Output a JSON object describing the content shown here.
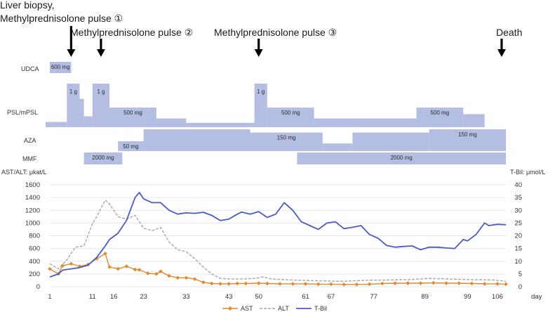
{
  "annotations": {
    "event1_line1": "Liver biopsy,",
    "event1_line2": "Methylprednisolone pulse ①",
    "event2": "Methylprednisolone pulse ②",
    "event3": "Methylprednisolone pulse ③",
    "event4": "Death",
    "event_days": [
      6,
      13,
      50,
      107
    ]
  },
  "timeline_rows": {
    "udca": {
      "label": "UDCA",
      "segments": [
        {
          "start": 1,
          "end": 6,
          "level": 1,
          "text": "600 mg"
        }
      ]
    },
    "psl": {
      "label": "PSL/mPSL",
      "segments": [
        {
          "start": 0,
          "end": 5,
          "level": 0.12,
          "text": ""
        },
        {
          "start": 5,
          "end": 8,
          "level": 1.0,
          "text": "1 g"
        },
        {
          "start": 8,
          "end": 9,
          "level": 0.65,
          "text": ""
        },
        {
          "start": 9,
          "end": 11,
          "level": 0.25,
          "text": ""
        },
        {
          "start": 11,
          "end": 15,
          "level": 1.0,
          "text": "1 g"
        },
        {
          "start": 15,
          "end": 26,
          "level": 0.45,
          "text": "500 mg"
        },
        {
          "start": 26,
          "end": 33,
          "level": 0.2,
          "text": ""
        },
        {
          "start": 33,
          "end": 49,
          "level": 0.1,
          "text": ""
        },
        {
          "start": 49,
          "end": 52,
          "level": 1.0,
          "text": "1 g"
        },
        {
          "start": 52,
          "end": 63,
          "level": 0.45,
          "text": "500 mg"
        },
        {
          "start": 63,
          "end": 87,
          "level": 0.2,
          "text": ""
        },
        {
          "start": 87,
          "end": 98,
          "level": 0.45,
          "text": "500 mg"
        },
        {
          "start": 98,
          "end": 103,
          "level": 0.3,
          "text": ""
        }
      ]
    },
    "aza": {
      "label": "AZA",
      "segments": [
        {
          "start": 17,
          "end": 23,
          "level": 0.45,
          "text": "50 mg"
        },
        {
          "start": 23,
          "end": 48,
          "level": 1.0,
          "text": ""
        },
        {
          "start": 48,
          "end": 65,
          "level": 0.85,
          "text": "150 mg"
        },
        {
          "start": 65,
          "end": 72,
          "level": 0.35,
          "text": ""
        },
        {
          "start": 72,
          "end": 90,
          "level": 0.85,
          "text": ""
        },
        {
          "start": 90,
          "end": 108,
          "level": 1.0,
          "text": "150 mg"
        }
      ]
    },
    "mmf": {
      "label": "MMF",
      "segments": [
        {
          "start": 9,
          "end": 18,
          "level": 1,
          "text": "2000 mg"
        },
        {
          "start": 59,
          "end": 108,
          "level": 1,
          "text": "2000 mg"
        }
      ]
    }
  },
  "chart_data": {
    "type": "line",
    "xlabel": "day",
    "ylabel_left": "AST/ALT: μkat/L",
    "ylabel_right": "T-Bil: μmol/L",
    "ylim_left": [
      0,
      1600
    ],
    "ylim_right": [
      0,
      40
    ],
    "xlim": [
      1,
      108
    ],
    "x_ticks": [
      1,
      11,
      16,
      23,
      33,
      43,
      50,
      61,
      67,
      77,
      89,
      99,
      106
    ],
    "y_ticks_left": [
      0,
      200,
      400,
      600,
      800,
      1000,
      1200,
      1400,
      1600
    ],
    "y_ticks_right": [
      0,
      5,
      10,
      15,
      20,
      25,
      30,
      35,
      40
    ],
    "legend_position": "bottom",
    "series": [
      {
        "name": "AST",
        "axis": "left",
        "color": "#e08a2c",
        "marker": "diamond",
        "points": [
          [
            1,
            280
          ],
          [
            3,
            200
          ],
          [
            4,
            330
          ],
          [
            6,
            360
          ],
          [
            8,
            320
          ],
          [
            10,
            350
          ],
          [
            12,
            440
          ],
          [
            14,
            520
          ],
          [
            15,
            310
          ],
          [
            17,
            280
          ],
          [
            19,
            320
          ],
          [
            21,
            270
          ],
          [
            22,
            265
          ],
          [
            24,
            210
          ],
          [
            26,
            200
          ],
          [
            27,
            240
          ],
          [
            29,
            170
          ],
          [
            31,
            140
          ],
          [
            33,
            140
          ],
          [
            35,
            120
          ],
          [
            37,
            70
          ],
          [
            39,
            50
          ],
          [
            41,
            45
          ],
          [
            43,
            45
          ],
          [
            45,
            50
          ],
          [
            47,
            50
          ],
          [
            50,
            55
          ],
          [
            52,
            50
          ],
          [
            55,
            45
          ],
          [
            58,
            45
          ],
          [
            61,
            45
          ],
          [
            64,
            40
          ],
          [
            67,
            40
          ],
          [
            70,
            35
          ],
          [
            73,
            35
          ],
          [
            76,
            40
          ],
          [
            79,
            50
          ],
          [
            82,
            55
          ],
          [
            85,
            55
          ],
          [
            88,
            55
          ],
          [
            91,
            60
          ],
          [
            94,
            55
          ],
          [
            97,
            55
          ],
          [
            100,
            50
          ],
          [
            103,
            45
          ],
          [
            106,
            45
          ],
          [
            108,
            40
          ]
        ]
      },
      {
        "name": "ALT",
        "axis": "left",
        "color": "#a6a6a6",
        "dashed": true,
        "points": [
          [
            1,
            360
          ],
          [
            3,
            280
          ],
          [
            5,
            420
          ],
          [
            7,
            620
          ],
          [
            9,
            640
          ],
          [
            11,
            990
          ],
          [
            12,
            1100
          ],
          [
            14,
            1360
          ],
          [
            15,
            1300
          ],
          [
            17,
            1100
          ],
          [
            19,
            1060
          ],
          [
            21,
            1120
          ],
          [
            23,
            920
          ],
          [
            25,
            880
          ],
          [
            27,
            930
          ],
          [
            29,
            700
          ],
          [
            31,
            580
          ],
          [
            33,
            550
          ],
          [
            35,
            440
          ],
          [
            37,
            310
          ],
          [
            39,
            200
          ],
          [
            41,
            130
          ],
          [
            43,
            120
          ],
          [
            46,
            120
          ],
          [
            49,
            130
          ],
          [
            51,
            155
          ],
          [
            53,
            120
          ],
          [
            56,
            110
          ],
          [
            60,
            100
          ],
          [
            65,
            90
          ],
          [
            70,
            85
          ],
          [
            75,
            100
          ],
          [
            80,
            105
          ],
          [
            85,
            110
          ],
          [
            90,
            130
          ],
          [
            95,
            120
          ],
          [
            100,
            110
          ],
          [
            105,
            105
          ],
          [
            108,
            85
          ]
        ]
      },
      {
        "name": "T-Bil",
        "axis": "right",
        "color": "#4a5ac6",
        "points": [
          [
            1,
            3.8
          ],
          [
            3,
            5
          ],
          [
            4,
            6.5
          ],
          [
            6,
            7
          ],
          [
            8,
            7.5
          ],
          [
            10,
            8.5
          ],
          [
            12,
            11.5
          ],
          [
            14,
            16
          ],
          [
            15,
            18.5
          ],
          [
            17,
            21
          ],
          [
            19,
            26
          ],
          [
            21,
            35
          ],
          [
            22,
            37
          ],
          [
            23,
            34.5
          ],
          [
            25,
            33
          ],
          [
            27,
            33
          ],
          [
            29,
            30
          ],
          [
            31,
            28.5
          ],
          [
            33,
            29
          ],
          [
            35,
            28.8
          ],
          [
            37,
            29.2
          ],
          [
            39,
            28
          ],
          [
            41,
            26
          ],
          [
            43,
            26.5
          ],
          [
            45,
            28.5
          ],
          [
            46,
            29.3
          ],
          [
            48,
            28.5
          ],
          [
            50,
            29.5
          ],
          [
            52,
            27.2
          ],
          [
            54,
            28.5
          ],
          [
            56,
            33
          ],
          [
            58,
            30
          ],
          [
            60,
            25.5
          ],
          [
            62,
            24
          ],
          [
            64,
            22.5
          ],
          [
            66,
            25
          ],
          [
            68,
            25.5
          ],
          [
            70,
            22.8
          ],
          [
            72,
            23.3
          ],
          [
            74,
            24
          ],
          [
            76,
            20.5
          ],
          [
            78,
            19
          ],
          [
            80,
            16.2
          ],
          [
            82,
            15.5
          ],
          [
            84,
            15.8
          ],
          [
            86,
            16
          ],
          [
            88,
            14.5
          ],
          [
            90,
            15.5
          ],
          [
            92,
            15.5
          ],
          [
            94,
            15.2
          ],
          [
            96,
            15
          ],
          [
            98,
            18.5
          ],
          [
            99,
            18
          ],
          [
            101,
            20.5
          ],
          [
            103,
            25
          ],
          [
            104,
            24
          ],
          [
            106,
            24.5
          ],
          [
            108,
            24.3
          ]
        ]
      }
    ]
  }
}
